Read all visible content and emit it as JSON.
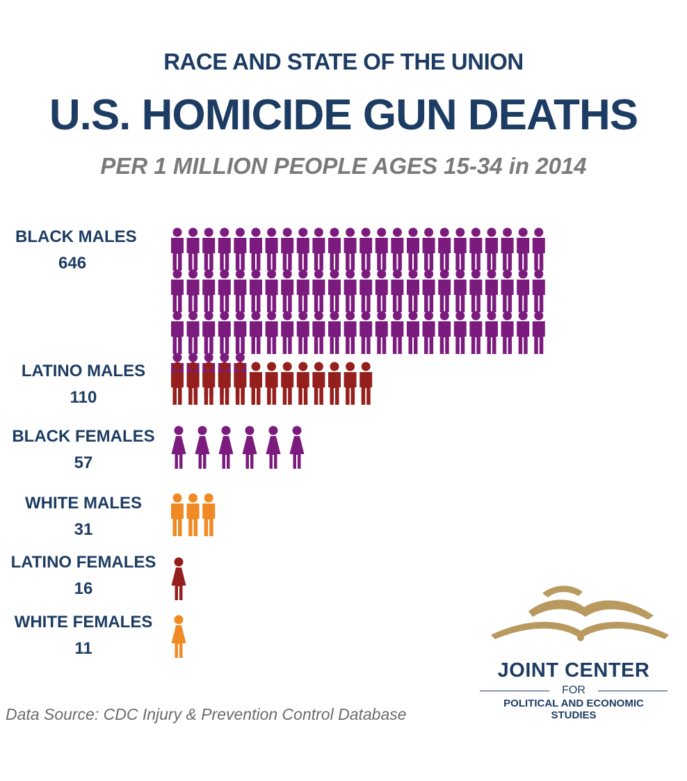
{
  "header": {
    "kicker": "RACE AND STATE OF THE UNION",
    "title": "U.S. HOMICIDE GUN DEATHS",
    "subtitle": "PER 1 MILLION PEOPLE AGES 15-34 in 2014"
  },
  "chart_data": {
    "type": "bar",
    "title": "U.S. HOMICIDE GUN DEATHS",
    "subtitle": "PER 1 MILLION PEOPLE AGES 15-34 in 2014",
    "categories": [
      "BLACK MALES",
      "LATINO MALES",
      "BLACK FEMALES",
      "WHITE MALES",
      "LATINO FEMALES",
      "WHITE FEMALES"
    ],
    "values": [
      646,
      110,
      57,
      31,
      16,
      11
    ],
    "units_per_icon": 8.33,
    "series": [
      {
        "values": [
          646,
          110,
          57,
          31,
          16,
          11
        ]
      }
    ],
    "colors": [
      "#7b1b7e",
      "#951f1c",
      "#7b1b7e",
      "#f08a24",
      "#951f1c",
      "#f08a24"
    ],
    "icons": [
      "male-person-icon",
      "male-person-icon",
      "female-person-icon",
      "male-person-icon",
      "female-person-icon",
      "female-person-icon"
    ]
  },
  "footer": {
    "source": "Data Source: CDC Injury & Prevention Control Database"
  },
  "logo": {
    "line1": "JOINT CENTER",
    "line2": "FOR",
    "line3": "POLITICAL AND ECONOMIC",
    "line4": "STUDIES",
    "colors": {
      "emblem": "#b8995e",
      "text": "#1d3c63"
    }
  }
}
